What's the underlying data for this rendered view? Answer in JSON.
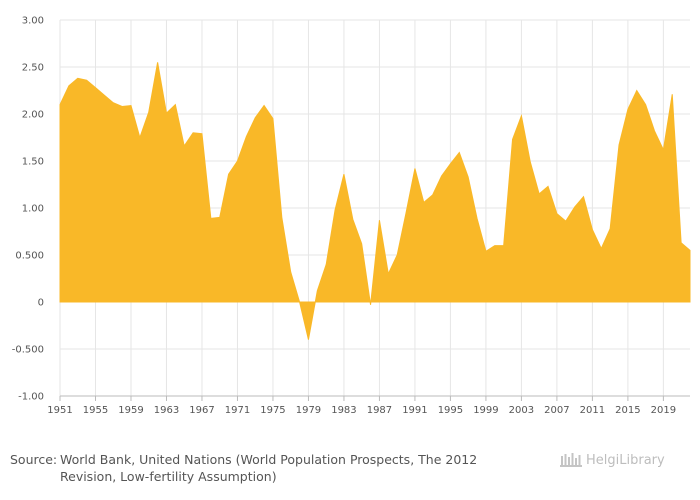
{
  "chart_data": {
    "type": "area",
    "title": "",
    "xlabel": "",
    "ylabel": "",
    "ylim": [
      -1.0,
      3.0
    ],
    "yticks": [
      -1.0,
      -0.5,
      0,
      0.5,
      1.0,
      1.5,
      2.0,
      2.5,
      3.0
    ],
    "ytick_labels": [
      "-1.00",
      "-0.500",
      "0",
      "0.500",
      "1.00",
      "1.50",
      "2.00",
      "2.50",
      "3.00"
    ],
    "xticks": [
      1951,
      1955,
      1959,
      1963,
      1967,
      1971,
      1975,
      1979,
      1983,
      1987,
      1991,
      1995,
      1999,
      2003,
      2007,
      2011,
      2015,
      2019
    ],
    "xtick_labels": [
      "1951",
      "1955",
      "1959",
      "1963",
      "1967",
      "1971",
      "1975",
      "1979",
      "1983",
      "1987",
      "1991",
      "1995",
      "1999",
      "2003",
      "2007",
      "2011",
      "2015",
      "2019"
    ],
    "fill_color": "#F9B828",
    "x": [
      1951,
      1952,
      1953,
      1954,
      1955,
      1956,
      1957,
      1958,
      1959,
      1960,
      1961,
      1962,
      1963,
      1964,
      1965,
      1966,
      1967,
      1968,
      1969,
      1970,
      1971,
      1972,
      1973,
      1974,
      1975,
      1976,
      1977,
      1978,
      1979,
      1980,
      1981,
      1982,
      1983,
      1984,
      1985,
      1986,
      1987,
      1988,
      1989,
      1990,
      1991,
      1992,
      1993,
      1994,
      1995,
      1996,
      1997,
      1998,
      1999,
      2000,
      2001,
      2002,
      2003,
      2004,
      2005,
      2006,
      2007,
      2008,
      2009,
      2010,
      2011,
      2012,
      2013,
      2014,
      2015,
      2016,
      2017,
      2018,
      2019,
      2020,
      2021,
      2022
    ],
    "values": [
      2.1,
      2.3,
      2.38,
      2.36,
      2.28,
      2.2,
      2.12,
      2.08,
      2.09,
      1.75,
      2.02,
      2.55,
      2.01,
      2.1,
      1.66,
      1.8,
      1.79,
      0.89,
      0.9,
      1.36,
      1.5,
      1.76,
      1.96,
      2.09,
      1.95,
      0.9,
      0.32,
      0.0,
      -0.4,
      0.12,
      0.4,
      0.98,
      1.36,
      0.88,
      0.62,
      -0.03,
      0.87,
      0.3,
      0.5,
      0.95,
      1.42,
      1.06,
      1.14,
      1.34,
      1.47,
      1.59,
      1.33,
      0.89,
      0.54,
      0.6,
      0.6,
      1.73,
      1.98,
      1.49,
      1.15,
      1.23,
      0.94,
      0.86,
      1.01,
      1.12,
      0.77,
      0.57,
      0.78,
      1.67,
      2.05,
      2.25,
      2.1,
      1.82,
      1.62,
      2.21,
      0.63,
      0.55
    ]
  },
  "source": {
    "prefix": "Source:",
    "line1": "World Bank, United Nations (World Population Prospects, The 2012",
    "line2": "Revision, Low-fertility Assumption)"
  },
  "logo": {
    "text": "HelgiLibrary"
  }
}
